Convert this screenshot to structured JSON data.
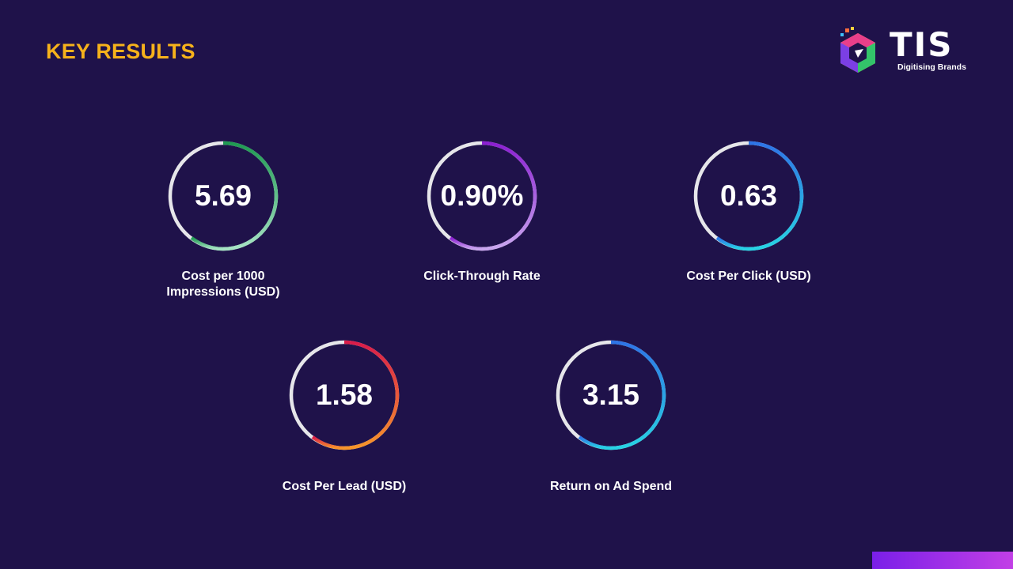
{
  "slide": {
    "title": "KEY RESULTS"
  },
  "logo": {
    "wordmark": "TIS",
    "tagline": "Digitising Brands",
    "icon": "hexagon-cube-logo-icon"
  },
  "metrics": [
    {
      "value": "5.69",
      "label_line1": "Cost per 1000",
      "label_line2": "Impressions (USD)",
      "gradient": [
        "#1f9a52",
        "#a6e3c4"
      ]
    },
    {
      "value": "0.90%",
      "label_line1": "Click-Through Rate",
      "label_line2": "",
      "gradient": [
        "#8b1fd1",
        "#c9a6ef"
      ]
    },
    {
      "value": "0.63",
      "label_line1": "Cost Per Click (USD)",
      "label_line2": "",
      "gradient": [
        "#2e74e6",
        "#27d3e4"
      ]
    },
    {
      "value": "1.58",
      "label_line1": "Cost Per Lead (USD)",
      "label_line2": "",
      "gradient": [
        "#d91c4a",
        "#f7952a"
      ]
    },
    {
      "value": "3.15",
      "label_line1": "Return on Ad Spend",
      "label_line2": "",
      "gradient": [
        "#2e74e6",
        "#27d3e4"
      ]
    }
  ],
  "colors": {
    "background": "#1f124a",
    "title": "#f6b21b",
    "ring_track": "#e6e6ea"
  }
}
